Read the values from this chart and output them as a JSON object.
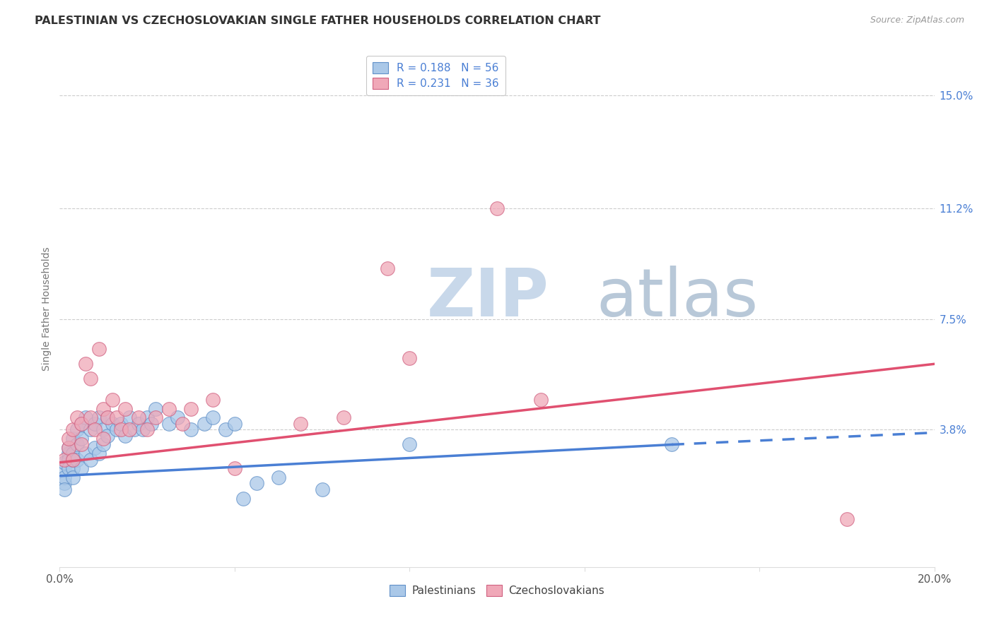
{
  "title": "PALESTINIAN VS CZECHOSLOVAKIAN SINGLE FATHER HOUSEHOLDS CORRELATION CHART",
  "source": "Source: ZipAtlas.com",
  "ylabel": "Single Father Households",
  "xlim": [
    0.0,
    0.2
  ],
  "ylim": [
    -0.008,
    0.165
  ],
  "ytick_labels": [
    "15.0%",
    "11.2%",
    "7.5%",
    "3.8%"
  ],
  "ytick_positions": [
    0.15,
    0.112,
    0.075,
    0.038
  ],
  "blue_color": "#4a7fd4",
  "pink_color": "#e05070",
  "blue_scatter_color": "#aac8e8",
  "pink_scatter_color": "#f0a8b8",
  "blue_scatter_edge": "#6090c8",
  "pink_scatter_edge": "#d06080",
  "watermark_zip": "ZIP",
  "watermark_atlas": "atlas",
  "watermark_color_zip": "#c8d8ea",
  "watermark_color_atlas": "#b8c8d8",
  "background_color": "#ffffff",
  "grid_color": "#cccccc",
  "title_color": "#333333",
  "axis_label_color": "#777777",
  "right_ytick_color": "#4a7fd4",
  "legend_blue_R": "0.188",
  "legend_blue_N": "56",
  "legend_pink_R": "0.231",
  "legend_pink_N": "36",
  "palestinians_x": [
    0.001,
    0.001,
    0.001,
    0.001,
    0.001,
    0.002,
    0.002,
    0.002,
    0.002,
    0.003,
    0.003,
    0.003,
    0.003,
    0.003,
    0.004,
    0.004,
    0.004,
    0.005,
    0.005,
    0.005,
    0.006,
    0.006,
    0.007,
    0.007,
    0.008,
    0.008,
    0.009,
    0.009,
    0.01,
    0.01,
    0.011,
    0.011,
    0.012,
    0.013,
    0.014,
    0.015,
    0.016,
    0.017,
    0.018,
    0.019,
    0.02,
    0.021,
    0.022,
    0.025,
    0.027,
    0.03,
    0.033,
    0.035,
    0.038,
    0.04,
    0.042,
    0.045,
    0.05,
    0.06,
    0.08,
    0.14
  ],
  "palestinians_y": [
    0.02,
    0.025,
    0.027,
    0.022,
    0.018,
    0.03,
    0.028,
    0.025,
    0.032,
    0.035,
    0.03,
    0.025,
    0.028,
    0.022,
    0.038,
    0.033,
    0.028,
    0.04,
    0.035,
    0.025,
    0.042,
    0.03,
    0.038,
    0.028,
    0.04,
    0.032,
    0.042,
    0.03,
    0.038,
    0.033,
    0.042,
    0.036,
    0.04,
    0.038,
    0.04,
    0.036,
    0.042,
    0.038,
    0.04,
    0.038,
    0.042,
    0.04,
    0.045,
    0.04,
    0.042,
    0.038,
    0.04,
    0.042,
    0.038,
    0.04,
    0.015,
    0.02,
    0.022,
    0.018,
    0.033,
    0.033
  ],
  "czechoslovakians_x": [
    0.001,
    0.002,
    0.002,
    0.003,
    0.003,
    0.004,
    0.005,
    0.005,
    0.006,
    0.007,
    0.007,
    0.008,
    0.009,
    0.01,
    0.01,
    0.011,
    0.012,
    0.013,
    0.014,
    0.015,
    0.016,
    0.018,
    0.02,
    0.022,
    0.025,
    0.028,
    0.03,
    0.035,
    0.04,
    0.055,
    0.065,
    0.075,
    0.08,
    0.1,
    0.11,
    0.18
  ],
  "czechoslovakians_y": [
    0.028,
    0.032,
    0.035,
    0.038,
    0.028,
    0.042,
    0.04,
    0.033,
    0.06,
    0.055,
    0.042,
    0.038,
    0.065,
    0.035,
    0.045,
    0.042,
    0.048,
    0.042,
    0.038,
    0.045,
    0.038,
    0.042,
    0.038,
    0.042,
    0.045,
    0.04,
    0.045,
    0.048,
    0.025,
    0.04,
    0.042,
    0.092,
    0.062,
    0.112,
    0.048,
    0.008
  ],
  "blue_line_x0": 0.0,
  "blue_line_y0": 0.0225,
  "blue_line_x_solid_end": 0.14,
  "blue_line_y_solid_end": 0.033,
  "blue_line_x_dashed_end": 0.2,
  "blue_line_y_dashed_end": 0.037,
  "pink_line_x0": 0.0,
  "pink_line_y0": 0.027,
  "pink_line_x_end": 0.2,
  "pink_line_y_end": 0.06
}
